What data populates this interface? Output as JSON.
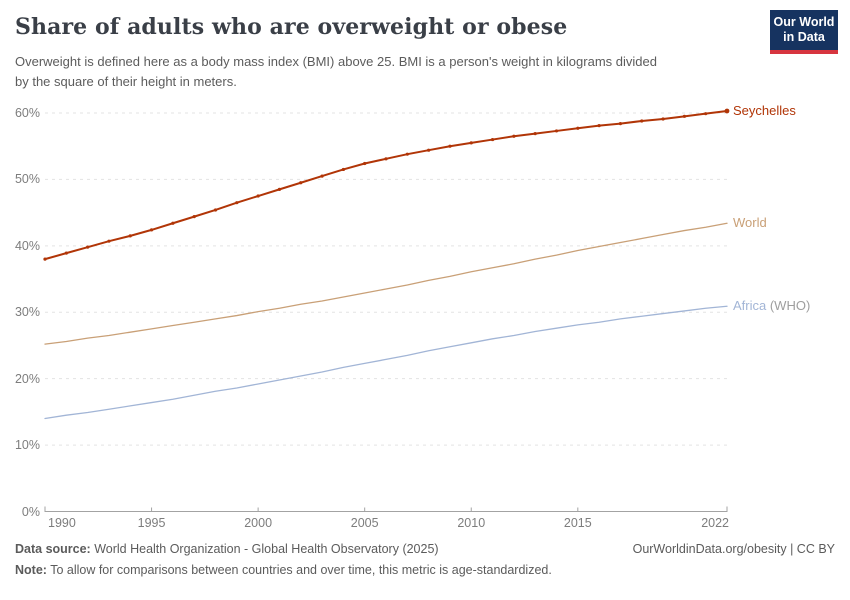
{
  "header": {
    "title": "Share of adults who are overweight or obese",
    "subtitle_line1": "Overweight is defined here as a body mass index (BMI) above 25. BMI is a person's weight in kilograms divided",
    "subtitle_line2": "by the square of their height in meters.",
    "logo": {
      "line1": "Our World",
      "line2": "in Data"
    }
  },
  "footer": {
    "source_label": "Data source:",
    "source_text": " World Health Organization - Global Health Observatory (2025)",
    "right_text": "OurWorldinData.org/obesity | CC BY",
    "note_label": "Note:",
    "note_text": " To allow for comparisons between countries and over time, this metric is age-standardized."
  },
  "chart_data": {
    "type": "line",
    "title": "Share of adults who are overweight or obese",
    "xlabel": "",
    "ylabel": "",
    "x_range": [
      1990,
      2022
    ],
    "y_range": [
      0,
      60
    ],
    "grid": true,
    "legend_position": "right-end-labels",
    "years": [
      1990,
      1991,
      1992,
      1993,
      1994,
      1995,
      1996,
      1997,
      1998,
      1999,
      2000,
      2001,
      2002,
      2003,
      2004,
      2005,
      2006,
      2007,
      2008,
      2009,
      2010,
      2011,
      2012,
      2013,
      2014,
      2015,
      2016,
      2017,
      2018,
      2019,
      2020,
      2021,
      2022
    ],
    "x_ticks": [
      {
        "year": 1990,
        "label": "1990"
      },
      {
        "year": 1995,
        "label": "1995"
      },
      {
        "year": 2000,
        "label": "2000"
      },
      {
        "year": 2005,
        "label": "2005"
      },
      {
        "year": 2010,
        "label": "2010"
      },
      {
        "year": 2015,
        "label": "2015"
      },
      {
        "year": 2022,
        "label": "2022"
      }
    ],
    "y_ticks": [
      {
        "value": 0,
        "label": "0%"
      },
      {
        "value": 10,
        "label": "10%"
      },
      {
        "value": 20,
        "label": "20%"
      },
      {
        "value": 30,
        "label": "30%"
      },
      {
        "value": 40,
        "label": "40%"
      },
      {
        "value": 50,
        "label": "50%"
      },
      {
        "value": 60,
        "label": "60%"
      }
    ],
    "series": [
      {
        "id": "seychelles",
        "label": "Seychelles",
        "label_suffix": "",
        "color": "#b13507",
        "width": 2,
        "markers": true,
        "values": [
          38.0,
          38.9,
          39.8,
          40.7,
          41.5,
          42.4,
          43.4,
          44.4,
          45.4,
          46.5,
          47.5,
          48.5,
          49.5,
          50.5,
          51.5,
          52.4,
          53.1,
          53.8,
          54.4,
          55.0,
          55.5,
          56.0,
          56.5,
          56.9,
          57.3,
          57.7,
          58.1,
          58.4,
          58.8,
          59.1,
          59.5,
          59.9,
          60.3
        ]
      },
      {
        "id": "world",
        "label": "World",
        "label_suffix": "",
        "color": "#c9a077",
        "width": 1.3,
        "markers": false,
        "values": [
          25.2,
          25.6,
          26.1,
          26.5,
          27.0,
          27.5,
          28.0,
          28.5,
          29.0,
          29.5,
          30.1,
          30.6,
          31.2,
          31.7,
          32.3,
          32.9,
          33.5,
          34.1,
          34.8,
          35.4,
          36.1,
          36.7,
          37.3,
          38.0,
          38.6,
          39.3,
          39.9,
          40.5,
          41.1,
          41.7,
          42.3,
          42.8,
          43.4
        ]
      },
      {
        "id": "africa-who",
        "label": "Africa",
        "label_suffix": " (WHO)",
        "color": "#a2b5d6",
        "width": 1.3,
        "markers": false,
        "values": [
          14.0,
          14.5,
          14.9,
          15.4,
          15.9,
          16.4,
          16.9,
          17.5,
          18.1,
          18.6,
          19.2,
          19.8,
          20.4,
          21.0,
          21.7,
          22.3,
          22.9,
          23.5,
          24.2,
          24.8,
          25.4,
          26.0,
          26.5,
          27.1,
          27.6,
          28.1,
          28.5,
          29.0,
          29.4,
          29.8,
          30.2,
          30.6,
          30.9
        ]
      }
    ],
    "colors": {
      "grid": "#e3e3e3",
      "axis": "#a3a3a3",
      "tick_label": "#7d7d7d",
      "suffix": "#9e9e9e",
      "accent_red": "#b13507",
      "logo_bg": "#163360",
      "logo_bar": "#d7353f"
    }
  }
}
